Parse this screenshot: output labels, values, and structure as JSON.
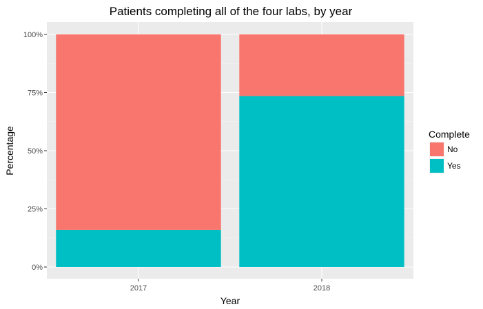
{
  "chart_data": {
    "type": "bar",
    "stacked": true,
    "title": "Patients completing all of the four labs, by year",
    "xlabel": "Year",
    "ylabel": "Percentage",
    "categories": [
      "2017",
      "2018"
    ],
    "series": [
      {
        "name": "No",
        "color": "#F8766D",
        "values": [
          0.84,
          0.265
        ]
      },
      {
        "name": "Yes",
        "color": "#00BFC4",
        "values": [
          0.16,
          0.735
        ]
      }
    ],
    "ylim": [
      0,
      1
    ],
    "y_ticks": [
      0,
      0.25,
      0.5,
      0.75,
      1
    ],
    "y_tick_labels": [
      "0%",
      "25%",
      "50%",
      "75%",
      "100%"
    ],
    "grid": true,
    "panel_background": "#EBEBEB",
    "legend": {
      "title": "Complete",
      "position": "right"
    }
  }
}
